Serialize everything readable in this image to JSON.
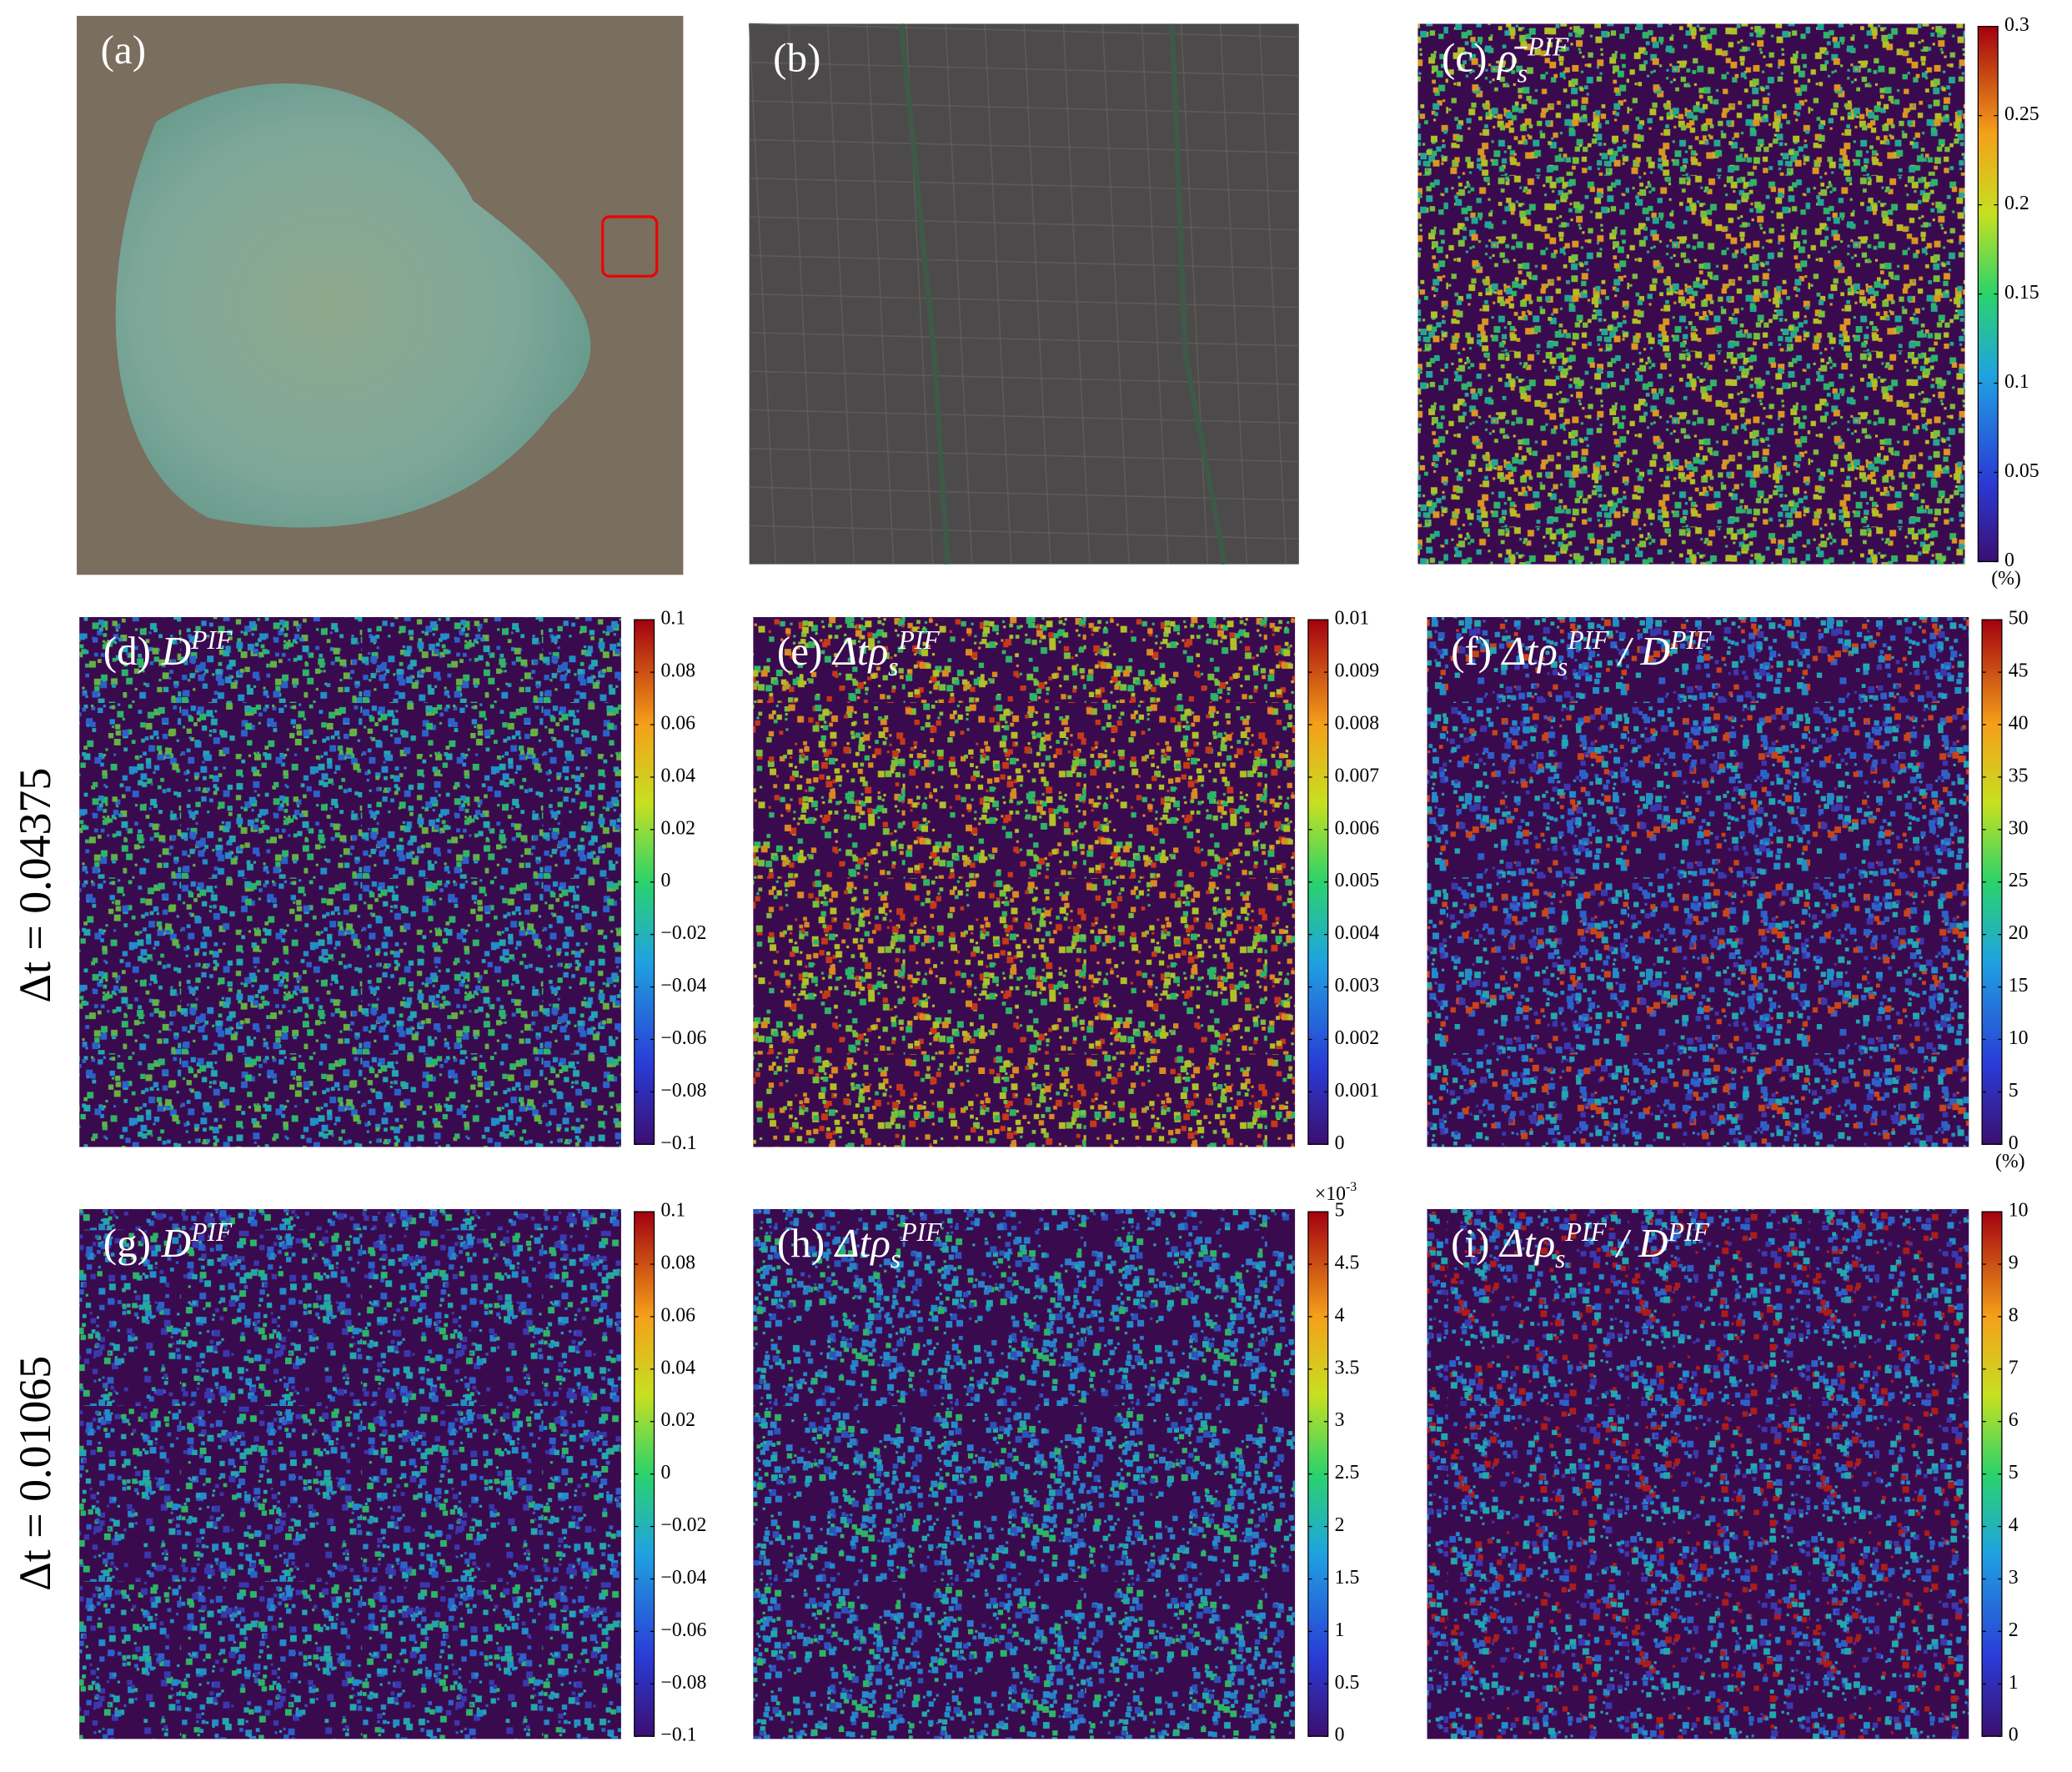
{
  "row_labels": [
    "Δt = 0.04375",
    "Δt = 0.01065"
  ],
  "panels": [
    {
      "label": "(a)"
    },
    {
      "label": "(b)"
    },
    {
      "label": "(c)",
      "title": [
        {
          "text": "ρ̄"
        },
        {
          "sub": "s"
        },
        {
          "sup": "PIF"
        }
      ],
      "colorbar": {
        "ticks": [
          "0.3",
          "0.25",
          "0.2",
          "0.15",
          "0.1",
          "0.05",
          "0"
        ],
        "unit": "(%)"
      }
    },
    {
      "label": "(d)",
      "title": [
        {
          "text": "D"
        },
        {
          "sup": "PIF"
        }
      ],
      "colorbar": {
        "ticks": [
          "0.1",
          "0.08",
          "0.06",
          "0.04",
          "0.02",
          "0",
          "−0.02",
          "−0.04",
          "−0.06",
          "−0.08",
          "−0.1"
        ]
      }
    },
    {
      "label": "(e)",
      "title": [
        {
          "text": "Δtρ"
        },
        {
          "sub": "s"
        },
        {
          "sup": "PIF"
        }
      ],
      "colorbar": {
        "ticks": [
          "0.01",
          "0.009",
          "0.008",
          "0.007",
          "0.006",
          "0.005",
          "0.004",
          "0.003",
          "0.002",
          "0.001",
          "0"
        ]
      }
    },
    {
      "label": "(f)",
      "title": [
        {
          "text": "Δtρ"
        },
        {
          "sub": "s"
        },
        {
          "sup": "PIF"
        },
        {
          "text": " / D"
        },
        {
          "sup": "PIF"
        }
      ],
      "colorbar": {
        "ticks": [
          "50",
          "45",
          "40",
          "35",
          "30",
          "25",
          "20",
          "15",
          "10",
          "5",
          "0"
        ],
        "unit": "(%)"
      }
    },
    {
      "label": "(g)",
      "title": [
        {
          "text": "D"
        },
        {
          "sup": "PIF"
        }
      ],
      "colorbar": {
        "ticks": [
          "0.1",
          "0.08",
          "0.06",
          "0.04",
          "0.02",
          "0",
          "−0.02",
          "−0.04",
          "−0.06",
          "−0.08",
          "−0.1"
        ]
      }
    },
    {
      "label": "(h)",
      "title": [
        {
          "text": "Δtρ"
        },
        {
          "sub": "s"
        },
        {
          "sup": "PIF"
        }
      ],
      "colorbar": {
        "ticks": [
          "5",
          "4.5",
          "4",
          "3.5",
          "3",
          "2.5",
          "2",
          "1.5",
          "1",
          "0.5",
          "0"
        ],
        "multiplier": {
          "base": "×10",
          "exponent": "-3"
        }
      }
    },
    {
      "label": "(i)",
      "title": [
        {
          "text": "Δtρ"
        },
        {
          "sub": "s"
        },
        {
          "sup": "PIF"
        },
        {
          "text": " / D"
        },
        {
          "sup": "PIF"
        }
      ],
      "colorbar": {
        "ticks": [
          "10",
          "9",
          "8",
          "7",
          "6",
          "5",
          "4",
          "3",
          "2",
          "1",
          "0"
        ]
      }
    }
  ]
}
